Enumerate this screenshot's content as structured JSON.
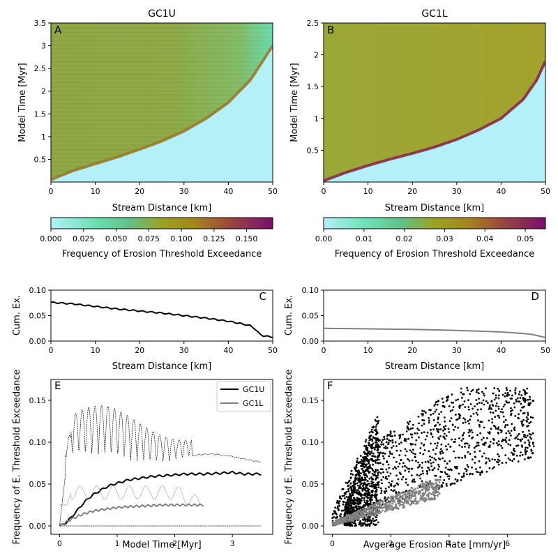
{
  "figure": {
    "chart_data": [
      {
        "type": "heatmap",
        "panel": "A",
        "title": "GC1U",
        "xlabel": "Stream Distance [km]",
        "ylabel": "Model Time [Myr]",
        "xlim": [
          0,
          50
        ],
        "ylim": [
          0,
          3.5
        ],
        "xticks": [
          0,
          10,
          20,
          30,
          40,
          50
        ],
        "yticks": [
          0.5,
          1.0,
          1.5,
          2.0,
          2.5,
          3.0,
          3.5
        ],
        "front": {
          "x": [
            0,
            5,
            10,
            15,
            20,
            25,
            30,
            35,
            40,
            45,
            48,
            50
          ],
          "t": [
            0.05,
            0.25,
            0.4,
            0.55,
            0.72,
            0.9,
            1.12,
            1.4,
            1.75,
            2.25,
            2.7,
            3.0
          ]
        },
        "colorbar": {
          "label": "Frequency of Erosion Threshold Exceedance",
          "range": [
            0,
            0.17
          ],
          "ticks": [
            "0.000",
            "0.025",
            "0.050",
            "0.075",
            "0.100",
            "0.125",
            "0.150"
          ]
        }
      },
      {
        "type": "heatmap",
        "panel": "B",
        "title": "GC1L",
        "xlabel": "Stream Distance [km]",
        "ylabel": "Model Time [Myr]",
        "xlim": [
          0,
          50
        ],
        "ylim": [
          0,
          2.5
        ],
        "xticks": [
          0,
          10,
          20,
          30,
          40,
          50
        ],
        "yticks": [
          0.5,
          1.0,
          1.5,
          2.0,
          2.5
        ],
        "front": {
          "x": [
            0,
            5,
            10,
            15,
            20,
            25,
            30,
            35,
            40,
            45,
            48,
            50
          ],
          "t": [
            0.02,
            0.15,
            0.26,
            0.36,
            0.45,
            0.55,
            0.67,
            0.82,
            1.0,
            1.3,
            1.6,
            1.9
          ]
        },
        "colorbar": {
          "label": "Frequency of Erosion Threshold Exceedance",
          "range": [
            0,
            0.055
          ],
          "ticks": [
            "0.00",
            "0.01",
            "0.02",
            "0.03",
            "0.04",
            "0.05"
          ]
        }
      },
      {
        "type": "line",
        "panel": "C",
        "xlabel": "Stream Distance [km]",
        "ylabel": "Cum. Ex.",
        "xlim": [
          0,
          50
        ],
        "ylim": [
          0,
          0.1
        ],
        "xticks": [
          0,
          10,
          20,
          30,
          40,
          50
        ],
        "yticks": [
          "0.00",
          "0.05",
          "0.10"
        ],
        "series": [
          {
            "color": "#000000",
            "x": [
              0,
              5,
              10,
              15,
              20,
              25,
              30,
              35,
              40,
              43,
              45,
              46,
              47,
              48,
              49,
              50
            ],
            "y": [
              0.076,
              0.073,
              0.068,
              0.063,
              0.059,
              0.055,
              0.05,
              0.045,
              0.039,
              0.034,
              0.03,
              0.024,
              0.014,
              0.01,
              0.009,
              0.008
            ]
          }
        ]
      },
      {
        "type": "line",
        "panel": "D",
        "xlabel": "Stream Distance [km]",
        "ylabel": "Cum. Ex.",
        "xlim": [
          0,
          50
        ],
        "ylim": [
          0,
          0.1
        ],
        "xticks": [
          0,
          10,
          20,
          30,
          40,
          50
        ],
        "yticks": [
          "0.00",
          "0.05",
          "0.10"
        ],
        "series": [
          {
            "color": "#808080",
            "x": [
              0,
              10,
              20,
              30,
              40,
              45,
              47,
              49,
              50
            ],
            "y": [
              0.025,
              0.024,
              0.023,
              0.021,
              0.018,
              0.015,
              0.013,
              0.009,
              0.007
            ]
          }
        ]
      },
      {
        "type": "line",
        "panel": "E",
        "xlabel": "Model Time [Myr]",
        "ylabel": "Frequency of E. Threshold Exceedance",
        "xlim": [
          -0.15,
          3.7
        ],
        "ylim": [
          -0.01,
          0.175
        ],
        "xticks": [
          0,
          1,
          2,
          3
        ],
        "yticks": [
          "0.00",
          "0.05",
          "0.10",
          "0.15"
        ],
        "legend": {
          "placement": "top-right",
          "entries": [
            "GC1U",
            "GC1L"
          ]
        },
        "series": [
          {
            "name": "GC1U",
            "color": "#000000",
            "x": [
              0,
              0.1,
              0.2,
              0.3,
              0.4,
              0.5,
              0.6,
              0.7,
              0.8,
              0.9,
              1.0,
              1.2,
              1.4,
              1.6,
              1.8,
              2.0,
              2.2,
              2.5,
              2.8,
              3.0,
              3.2,
              3.5
            ],
            "y": [
              0,
              0.003,
              0.01,
              0.018,
              0.026,
              0.033,
              0.038,
              0.042,
              0.046,
              0.049,
              0.051,
              0.055,
              0.057,
              0.059,
              0.06,
              0.061,
              0.062,
              0.062,
              0.063,
              0.064,
              0.062,
              0.062
            ]
          },
          {
            "name": "GC1L",
            "color": "#808080",
            "x": [
              0,
              0.1,
              0.2,
              0.3,
              0.4,
              0.6,
              0.8,
              1.0,
              1.2,
              1.5,
              1.8,
              2.1,
              2.5
            ],
            "y": [
              0,
              0.004,
              0.008,
              0.011,
              0.014,
              0.018,
              0.02,
              0.022,
              0.023,
              0.024,
              0.025,
              0.025,
              0.025
            ]
          }
        ]
      },
      {
        "type": "scatter",
        "panel": "F",
        "xlabel": "Avgerage Erosion Rate [mm/yr]",
        "ylabel": "Frequency of E. Threshold Exceedance",
        "xlim": [
          -0.3,
          7.3
        ],
        "ylim": [
          -0.01,
          0.175
        ],
        "xticks": [
          0,
          2,
          4,
          6
        ],
        "yticks": [
          "0.00",
          "0.05",
          "0.10",
          "0.15"
        ],
        "series": [
          {
            "color": "#000000",
            "x_range": [
              0,
              6.9
            ],
            "y_range": [
              0,
              0.165
            ]
          },
          {
            "color": "#808080",
            "x_range": [
              0,
              3.7
            ],
            "y_range": [
              0,
              0.055
            ]
          }
        ]
      }
    ]
  }
}
